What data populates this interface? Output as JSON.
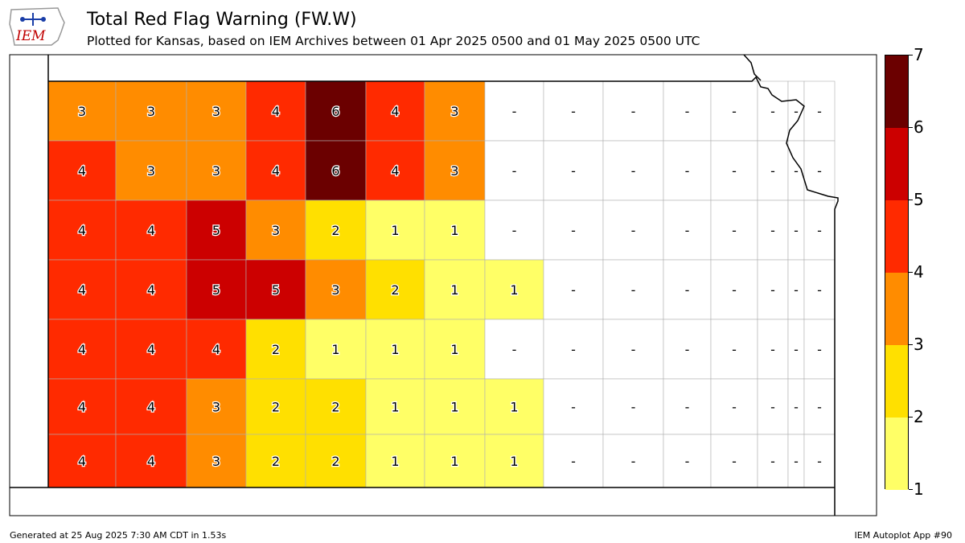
{
  "header": {
    "title": "Total Red Flag Warning (FW.W)",
    "subtitle": "Plotted for Kansas, based on IEM Archives  between 01 Apr 2025 0500 and 01 May 2025 0500 UTC",
    "logo_text": "IEM"
  },
  "footer": {
    "generated": "Generated at 25 Aug 2025 7:30 AM CDT in 1.53s",
    "app": "IEM Autoplot App #90"
  },
  "legend": {
    "ticks": [
      "1",
      "2",
      "3",
      "4",
      "5",
      "6",
      "7"
    ],
    "bins": [
      {
        "min": 1,
        "max": 2,
        "color": "#ffff66"
      },
      {
        "min": 2,
        "max": 3,
        "color": "#ffe000"
      },
      {
        "min": 3,
        "max": 4,
        "color": "#ff8c00"
      },
      {
        "min": 4,
        "max": 5,
        "color": "#ff2a00"
      },
      {
        "min": 5,
        "max": 6,
        "color": "#cc0000"
      },
      {
        "min": 6,
        "max": 7,
        "color": "#6b0000"
      }
    ]
  },
  "counties": [
    [
      "3",
      "3",
      "3",
      "4",
      "6",
      "4",
      "3",
      "-",
      "-",
      "-",
      "-",
      "-",
      "-",
      "-",
      "-"
    ],
    [
      "4",
      "3",
      "3",
      "4",
      "6",
      "4",
      "3",
      "-",
      "-",
      "-",
      "-",
      "-",
      "-",
      "-",
      "-"
    ],
    [
      "4",
      "4",
      "5",
      "3",
      "2",
      "1",
      "1",
      "-",
      "-",
      "-",
      "-",
      "-",
      "-",
      "-",
      "-"
    ],
    [
      "4",
      "4",
      "5",
      "5",
      "3",
      "2",
      "1",
      "1",
      "-",
      "-",
      "-",
      "-",
      "-",
      "-",
      "-"
    ],
    [
      "4",
      "4",
      "4",
      "2",
      "1",
      "1",
      "1",
      "-",
      "-",
      "-",
      "-",
      "-",
      "-",
      "-",
      "-"
    ],
    [
      "4",
      "4",
      "3",
      "2",
      "2",
      "1",
      "1",
      "1",
      "-",
      "-",
      "-",
      "-",
      "-",
      "-",
      "-"
    ],
    [
      "4",
      "4",
      "3",
      "2",
      "2",
      "1",
      "1",
      "1",
      "-",
      "-",
      "-",
      "-",
      "-",
      "-",
      "-"
    ]
  ]
}
